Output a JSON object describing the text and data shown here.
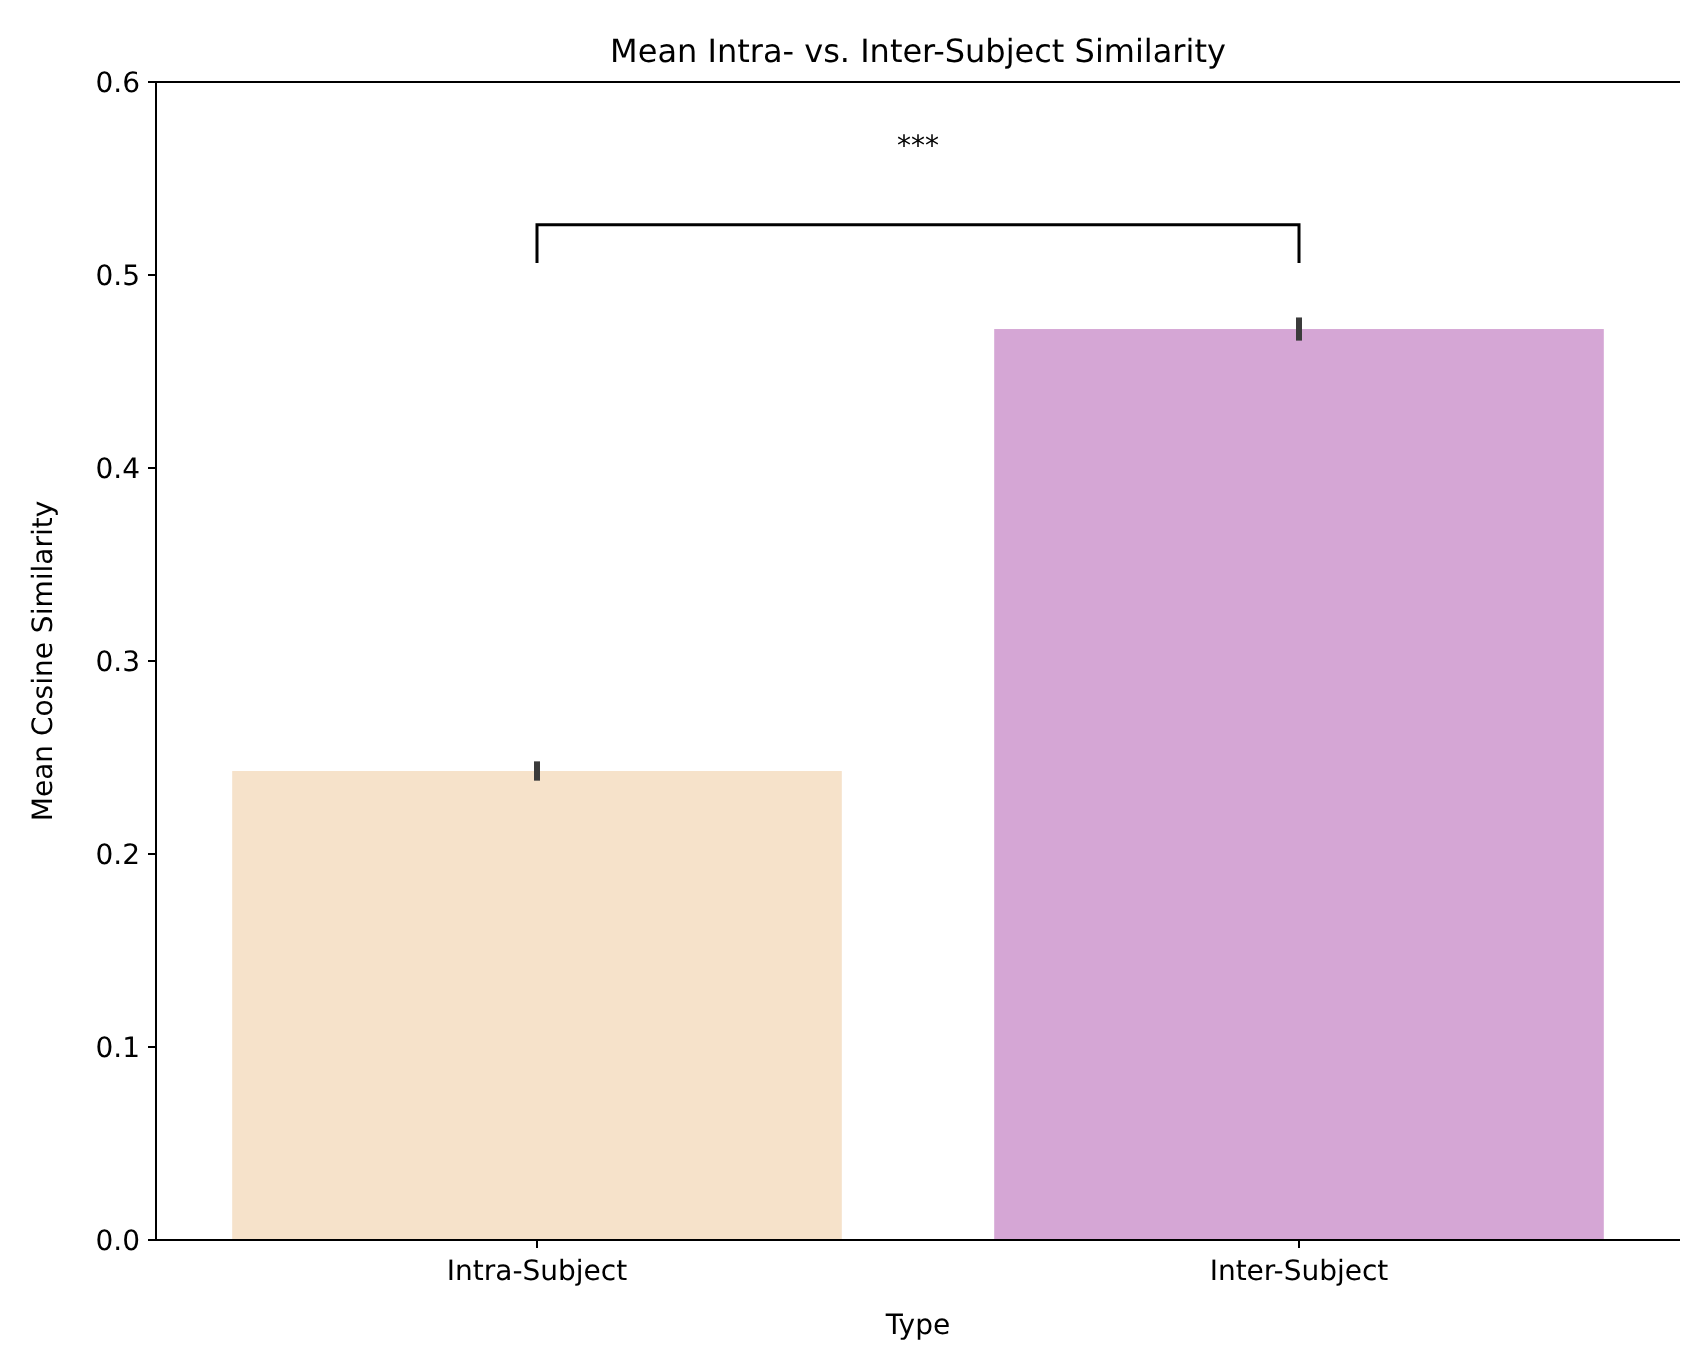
{
  "chart_data": {
    "type": "bar",
    "title": "Mean Intra- vs. Inter-Subject Similarity",
    "xlabel": "Type",
    "ylabel": "Mean Cosine Similarity",
    "categories": [
      "Intra-Subject",
      "Inter-Subject"
    ],
    "values": [
      0.243,
      0.472
    ],
    "errors": [
      0.005,
      0.006
    ],
    "colors": [
      "#f6e2ca",
      "#d5a6d5"
    ],
    "ylim": [
      0,
      0.6
    ],
    "yticks": [
      {
        "value": 0,
        "label": "0.0"
      },
      {
        "value": 0.1,
        "label": "0.1"
      },
      {
        "value": 0.2,
        "label": "0.2"
      },
      {
        "value": 0.3,
        "label": "0.3"
      },
      {
        "value": 0.4,
        "label": "0.4"
      },
      {
        "value": 0.5,
        "label": "0.5"
      },
      {
        "value": 0.6,
        "label": "0.6"
      }
    ],
    "annotations": [
      "***"
    ]
  }
}
